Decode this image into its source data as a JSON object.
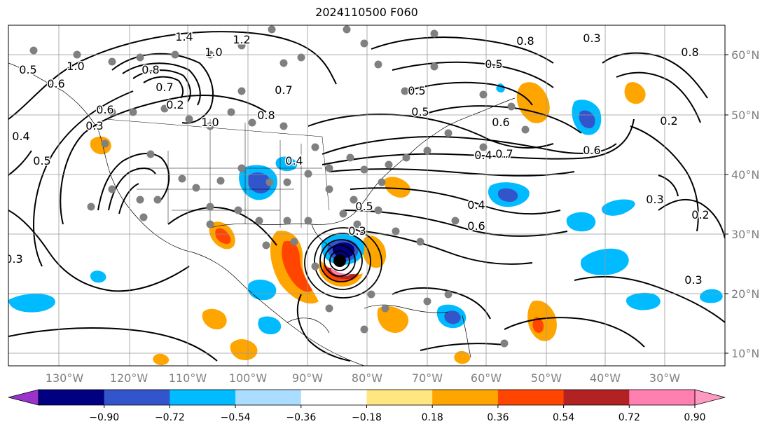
{
  "title": "2024110500 F060",
  "latitude_labels": [
    "60°N",
    "50°N",
    "40°N",
    "30°N",
    "20°N",
    "10°N"
  ],
  "longitude_labels": [
    "130°W",
    "120°W",
    "110°W",
    "100°W",
    "90°W",
    "80°W",
    "70°W",
    "60°W",
    "50°W",
    "40°W",
    "30°W"
  ],
  "contour_labels": [
    "1.4",
    "1.2",
    "1.0",
    "0.8",
    "0.8",
    "0.7",
    "0.6",
    "0.5",
    "0.5",
    "0.4",
    "0.4",
    "0.3",
    "0.3",
    "0.3",
    "0.2",
    "0.2",
    "0.3",
    "1.0",
    "0.5",
    "0.6",
    "0.7",
    "0.6",
    "0.4",
    "0.5",
    "0.3",
    "0.3",
    "0.6",
    "0.5",
    "0.8",
    "0.7",
    "0.2",
    "0.3",
    "0.5",
    "0.6",
    "0.4",
    "1.0",
    "0.8"
  ],
  "colorbar": {
    "ticks": [
      "−0.90",
      "−0.72",
      "−0.54",
      "−0.36",
      "−0.18",
      "0.18",
      "0.36",
      "0.54",
      "0.72",
      "0.90"
    ],
    "colors": [
      "#9933cc",
      "#000080",
      "#3355cc",
      "#00bbff",
      "#aaddff",
      "#ffffff",
      "#ffe680",
      "#ffa500",
      "#ff4500",
      "#b22222",
      "#ff80b0",
      "#ff99c0"
    ]
  },
  "storm_marker": "cyclone-center",
  "palette": {
    "warm_orange": "#ffa500",
    "warm_red": "#ff4500",
    "dark_red": "#b22222",
    "pink": "#ff80b0",
    "cool_cyan": "#00bbff",
    "cool_blue": "#3355cc",
    "cool_navy": "#000080",
    "grid": "#999999",
    "station_dot": "#808080"
  }
}
